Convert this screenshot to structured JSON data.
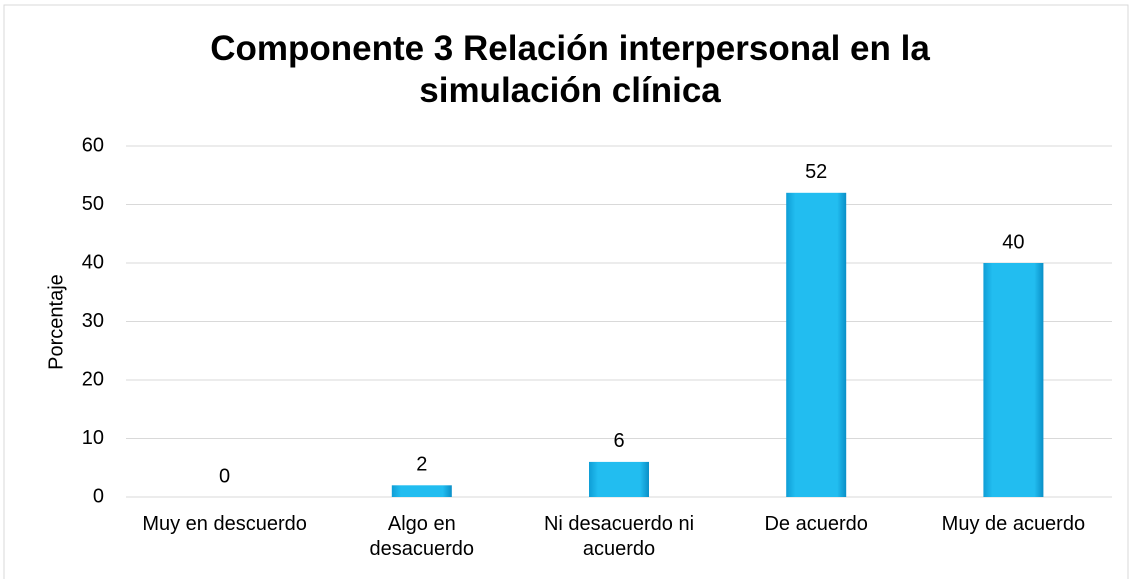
{
  "chart_data": {
    "type": "bar",
    "title": "Componente 3 Relación interpersonal en la simulación clínica",
    "y_label": "Porcentaje",
    "categories": [
      "Muy en descuerdo",
      "Algo en desacuerdo",
      "Ni desacuerdo ni acuerdo",
      "De acuerdo",
      "Muy de acuerdo"
    ],
    "values": [
      0,
      2,
      6,
      52,
      40
    ],
    "color": "#1cb6ea",
    "ylim": [
      0,
      60
    ],
    "yticks": [
      0,
      10,
      20,
      30,
      40,
      50,
      60
    ],
    "grid": true
  }
}
